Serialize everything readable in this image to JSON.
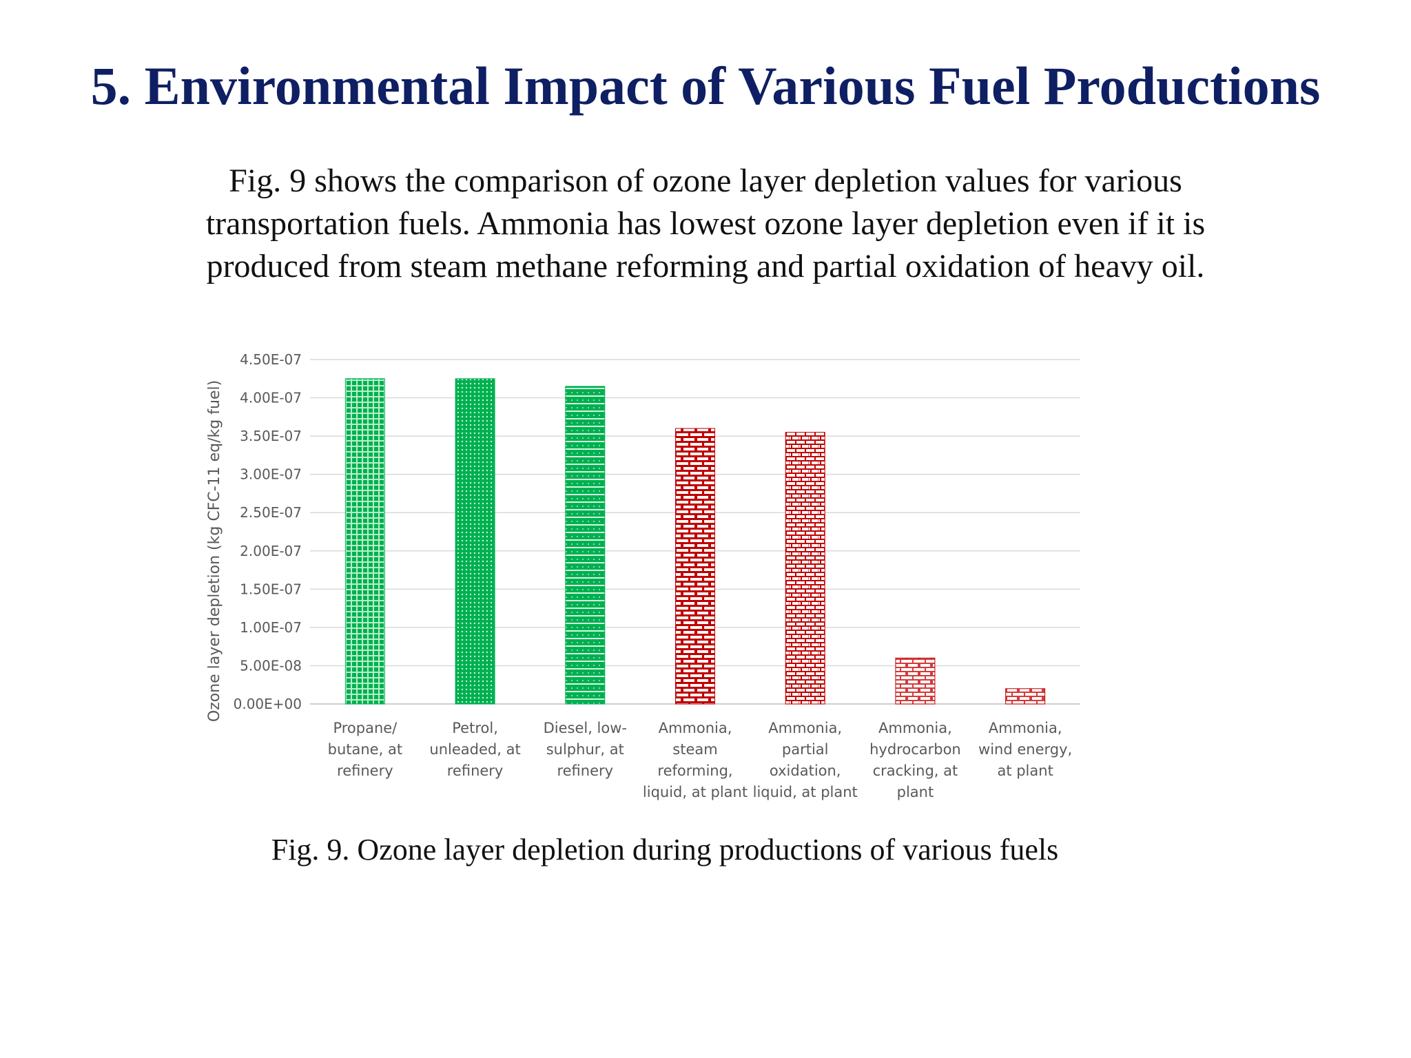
{
  "slide": {
    "title": "5.  Environmental Impact of Various Fuel Productions",
    "body_lines": [
      "Fig. 9 shows the comparison of ozone layer depletion values for various",
      "transportation fuels. Ammonia has lowest ozone layer depletion even if it is",
      "produced from steam methane reforming and partial oxidation of heavy oil."
    ],
    "caption": "Fig. 9. Ozone layer depletion during productions of various fuels"
  },
  "chart_data": {
    "type": "bar",
    "title": "",
    "xlabel": "",
    "ylabel": "Ozone layer depletion (kg CFC-11 eq/kg fuel)",
    "ylim": [
      0,
      4.5e-07
    ],
    "yticks": [
      0,
      5e-08,
      1e-07,
      1.5e-07,
      2e-07,
      2.5e-07,
      3e-07,
      3.5e-07,
      4e-07,
      4.5e-07
    ],
    "ytick_labels": [
      "0.00E+00",
      "5.00E-08",
      "1.00E-07",
      "1.50E-07",
      "2.00E-07",
      "2.50E-07",
      "3.00E-07",
      "3.50E-07",
      "4.00E-07",
      "4.50E-07"
    ],
    "grid": true,
    "legend": "none",
    "categories": [
      [
        "Propane/",
        "butane, at",
        "refinery"
      ],
      [
        "Petrol,",
        "unleaded, at",
        "refinery"
      ],
      [
        "Diesel, low-",
        "sulphur, at",
        "refinery"
      ],
      [
        "Ammonia,",
        "steam",
        "reforming,",
        "liquid, at plant"
      ],
      [
        "Ammonia,",
        "partial",
        "oxidation,",
        "liquid, at plant"
      ],
      [
        "Ammonia,",
        "hydrocarbon",
        "cracking, at",
        "plant"
      ],
      [
        "Ammonia,",
        "wind energy,",
        "at plant"
      ]
    ],
    "values": [
      4.25e-07,
      4.25e-07,
      4.15e-07,
      3.6e-07,
      3.55e-07,
      6e-08,
      2e-08
    ],
    "bar_colors": [
      "#00b050",
      "#00b050",
      "#00b050",
      "#c00000",
      "#c00000",
      "#c00000",
      "#c00000"
    ],
    "bar_patterns": [
      "grid",
      "dots",
      "horizontal-dots",
      "brick",
      "brick-vertical",
      "brick-light",
      "brick-light"
    ]
  }
}
